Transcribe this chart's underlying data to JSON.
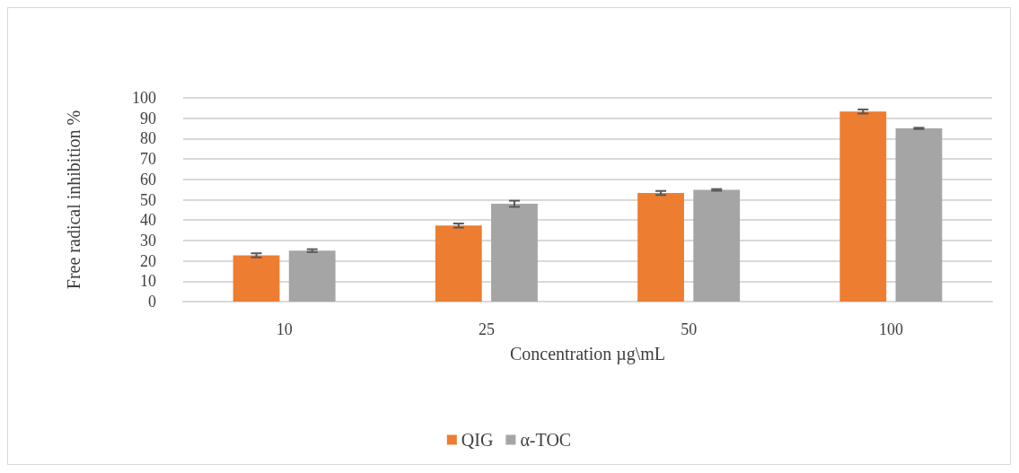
{
  "chart_data": {
    "type": "bar",
    "xlabel": "Concentration µg\\mL",
    "ylabel": "Free radical inhibition %",
    "categories": [
      "10",
      "25",
      "50",
      "100"
    ],
    "series": [
      {
        "name": "QIG",
        "color": "#ed7d31",
        "values": [
          22.7,
          37.3,
          53.3,
          93.3
        ],
        "errors": [
          1,
          1,
          1,
          1
        ]
      },
      {
        "name": "α-TOC",
        "color": "#a5a5a5",
        "values": [
          25,
          48,
          54.8,
          85
        ],
        "errors": [
          0.7,
          1.5,
          0.4,
          0.3
        ]
      }
    ],
    "ylim": [
      0,
      100
    ],
    "yticks": [
      0,
      10,
      20,
      30,
      40,
      50,
      60,
      70,
      80,
      90,
      100
    ],
    "grid": "y",
    "legend": "bottom"
  }
}
